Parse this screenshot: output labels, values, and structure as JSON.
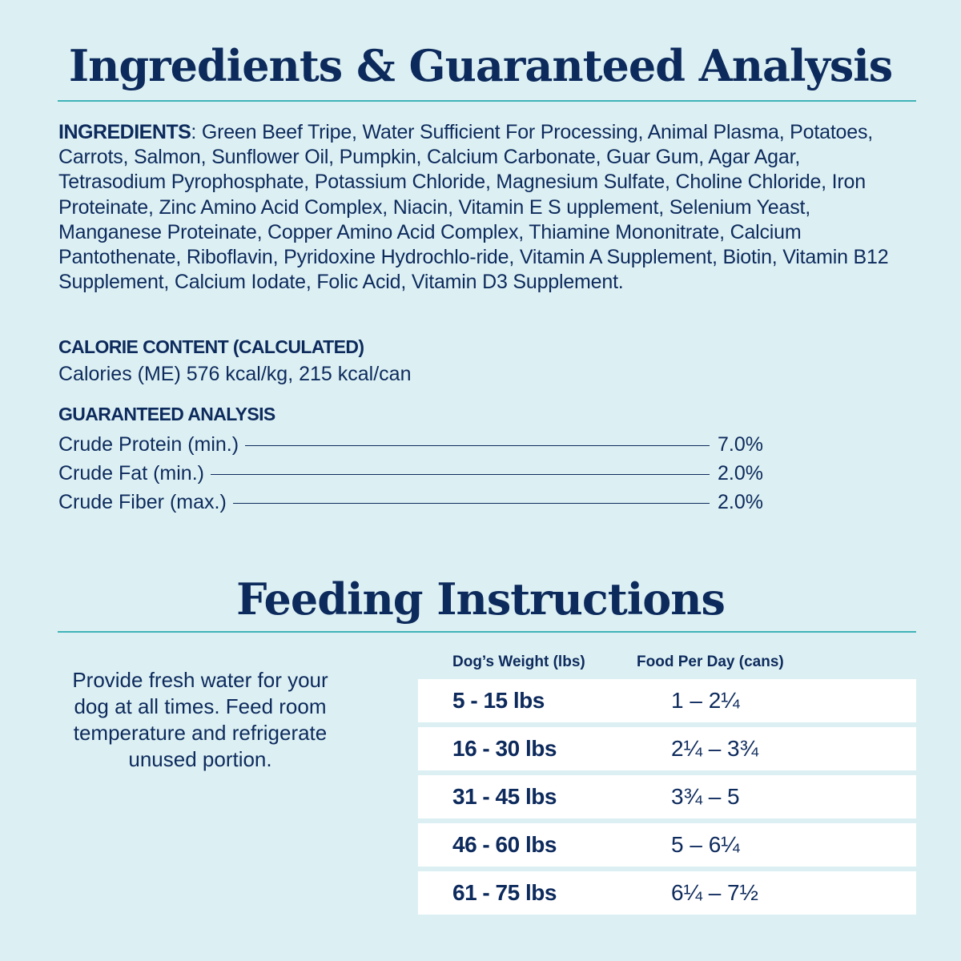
{
  "ingredients_section": {
    "title": "Ingredients & Guaranteed Analysis",
    "ingredients_label": "INGREDIENTS",
    "ingredients_text": ": Green Beef Tripe, Water Sufficient For Processing, Animal Plasma, Potatoes, Carrots, Salmon, Sunflower Oil, Pumpkin, Calcium Carbonate, Guar Gum, Agar Agar, Tetrasodium Pyrophosphate, Potassium Chloride, Magnesium Sulfate, Choline Chloride, Iron Proteinate, Zinc Amino Acid Complex, Niacin, Vitamin E S upplement, Selenium Yeast, Manganese Proteinate, Copper Amino Acid Complex, Thiamine Mononitrate, Calcium Pantothenate, Riboflavin, Pyridoxine Hydrochlo-ride, Vitamin A Supplement, Biotin, Vitamin B12 Supplement, Calcium Iodate, Folic Acid, Vitamin D3 Supplement.",
    "calorie_heading": "CALORIE CONTENT (CALCULATED)",
    "calorie_text": "Calories (ME) 576 kcal/kg, 215 kcal/can",
    "analysis_heading": "GUARANTEED ANALYSIS",
    "analysis_rows": [
      {
        "name": "Crude Protein (min.)",
        "value": "7.0%"
      },
      {
        "name": "Crude Fat (min.)",
        "value": "2.0%"
      },
      {
        "name": "Crude Fiber (max.)",
        "value": "2.0%"
      }
    ]
  },
  "feeding_section": {
    "title": "Feeding Instructions",
    "note": "Provide fresh water for your dog at all times. Feed room temperature and refrigerate unused portion.",
    "table_headers": {
      "weight": "Dog’s Weight (lbs)",
      "amount": "Food Per Day (cans)"
    },
    "rows": [
      {
        "weight": "5 - 15 lbs",
        "amount": "1 – 2¼"
      },
      {
        "weight": "16 - 30 lbs",
        "amount": "2¼ – 3¾"
      },
      {
        "weight": "31 - 45 lbs",
        "amount": "3¾ – 5"
      },
      {
        "weight": "46 - 60 lbs",
        "amount": "5 – 6¼"
      },
      {
        "weight": "61 - 75 lbs",
        "amount": "6¼ – 7½"
      }
    ]
  },
  "colors": {
    "background": "#dcf0f3",
    "text": "#0d2a5c",
    "accent_rule": "#3fb3b8",
    "row_background": "#ffffff"
  }
}
